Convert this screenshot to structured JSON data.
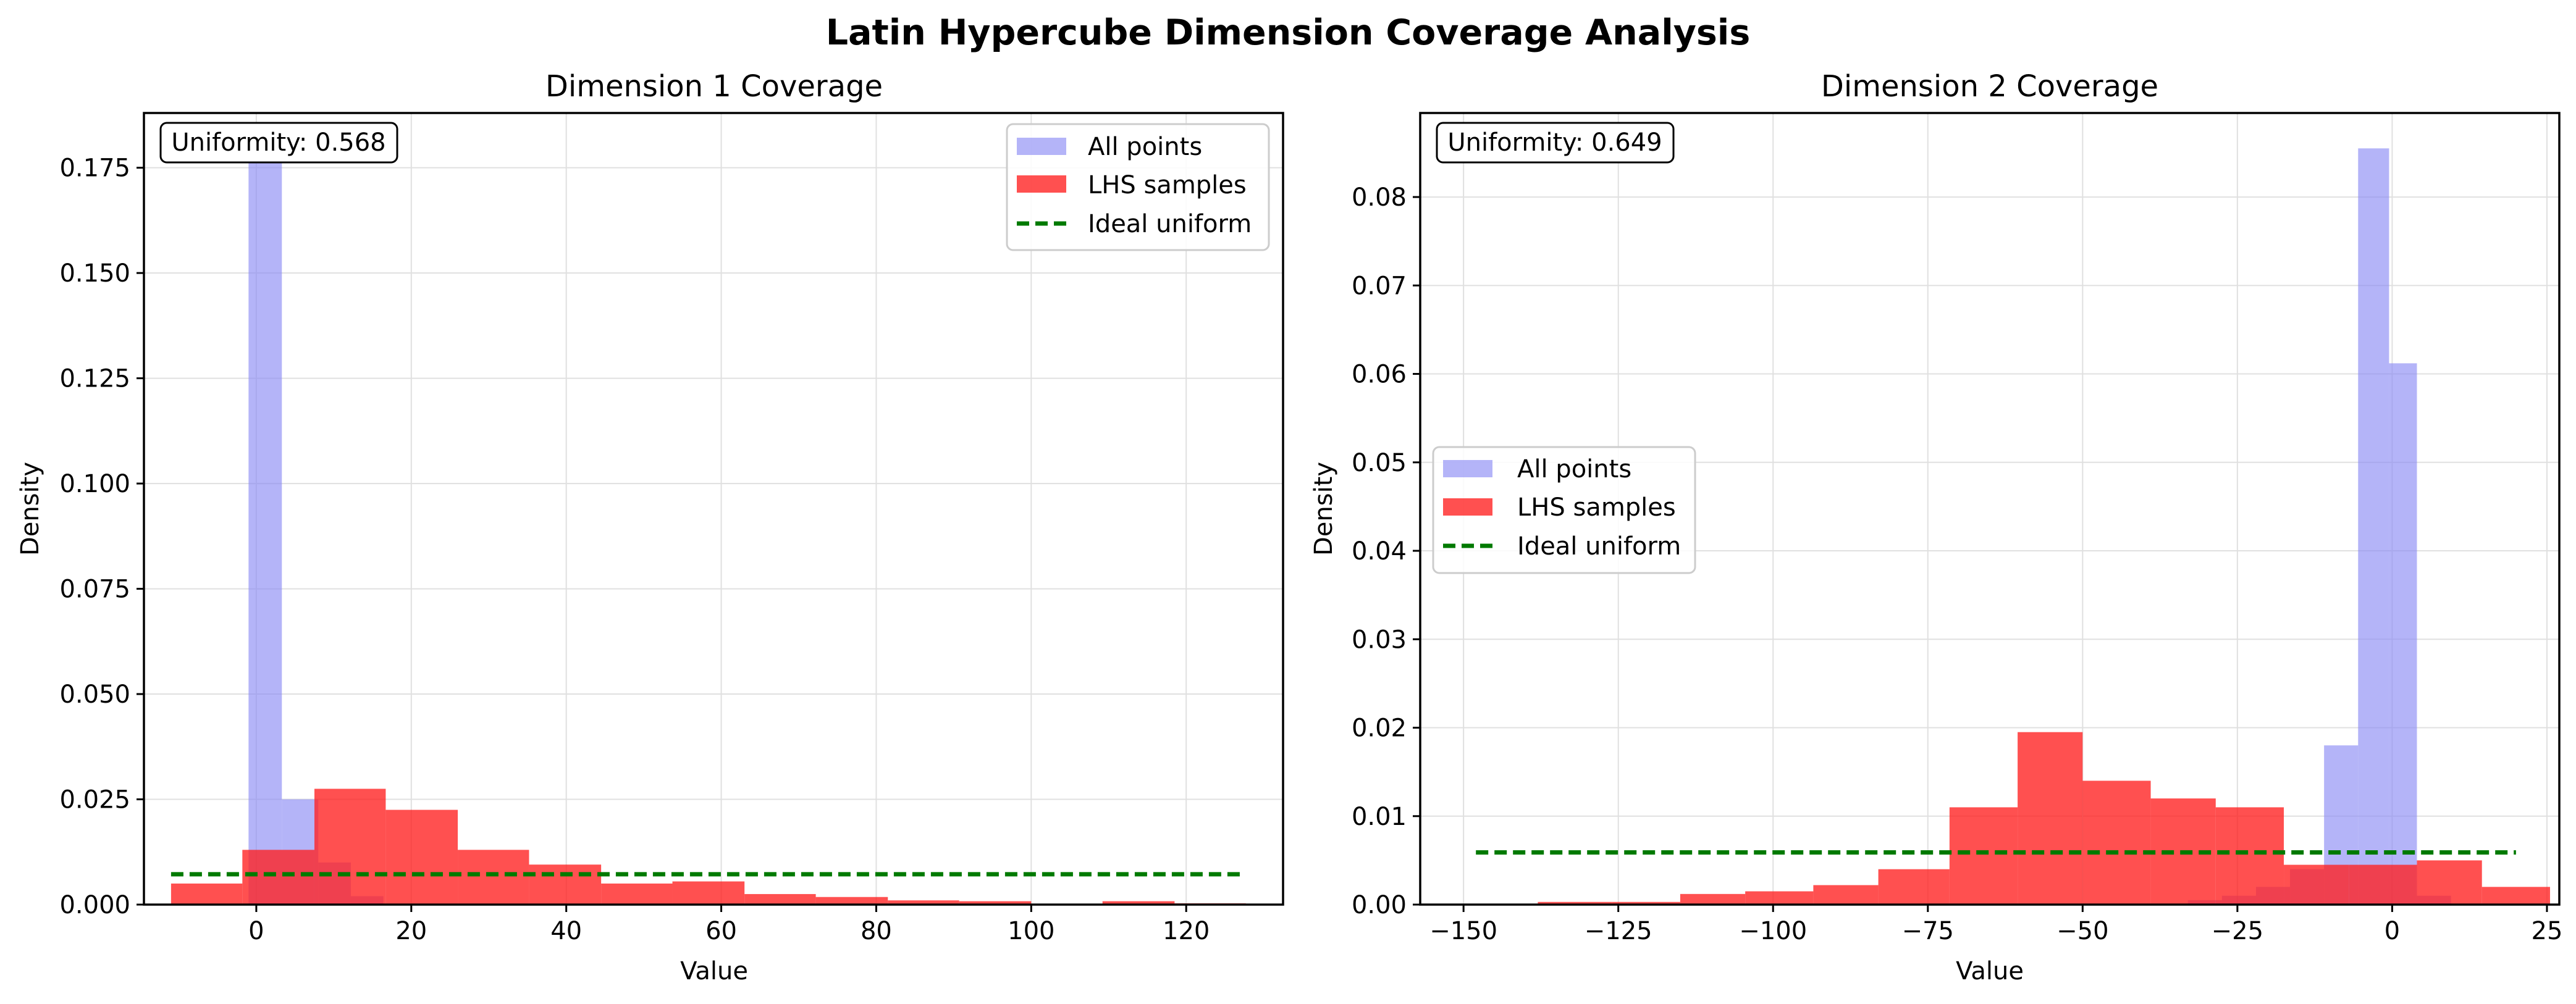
{
  "figure": {
    "title": "Latin Hypercube Dimension Coverage Analysis"
  },
  "colors": {
    "all_points": "#8c8cf5",
    "lhs_samples": "#ff1f1f",
    "ideal_uniform": "#007a00",
    "grid": "#e0e0e0"
  },
  "chart_data": [
    {
      "type": "bar",
      "title": "Dimension 1 Coverage",
      "xlabel": "Value",
      "ylabel": "Density",
      "xlim": [
        -14.5,
        132.5
      ],
      "ylim": [
        0,
        0.188
      ],
      "xticks": [
        0,
        20,
        40,
        60,
        80,
        100,
        120
      ],
      "yticks": [
        0.0,
        0.025,
        0.05,
        0.075,
        0.1,
        0.125,
        0.15,
        0.175
      ],
      "ytick_labels": [
        "0.000",
        "0.025",
        "0.050",
        "0.075",
        "0.100",
        "0.125",
        "0.150",
        "0.175"
      ],
      "grid": true,
      "legend_position": "upper-right",
      "annotation": "Uniformity: 0.568",
      "series": [
        {
          "name": "All points",
          "bins": [
            [
              -1,
              3.3
            ],
            [
              3.3,
              8
            ],
            [
              8,
              12.2
            ],
            [
              12.2,
              16.4
            ]
          ],
          "values": [
            0.178,
            0.025,
            0.01,
            0.002
          ]
        },
        {
          "name": "LHS samples",
          "bins": [
            [
              -11,
              -1.8
            ],
            [
              -1.8,
              7.5
            ],
            [
              7.5,
              16.7
            ],
            [
              16.7,
              26
            ],
            [
              26,
              35.2
            ],
            [
              35.2,
              44.5
            ],
            [
              44.5,
              53.7
            ],
            [
              53.7,
              63
            ],
            [
              63,
              72.2
            ],
            [
              72.2,
              81.5
            ],
            [
              81.5,
              90.7
            ],
            [
              90.7,
              100
            ],
            [
              100,
              109.2
            ],
            [
              109.2,
              118.5
            ],
            [
              118.5,
              127.7
            ]
          ],
          "values": [
            0.005,
            0.013,
            0.0275,
            0.0225,
            0.013,
            0.0095,
            0.005,
            0.0055,
            0.0025,
            0.0018,
            0.001,
            0.0008,
            0.0002,
            0.0008,
            0.0003
          ]
        },
        {
          "name": "Ideal uniform",
          "x": [
            -11,
            127.7
          ],
          "y": [
            0.0072,
            0.0072
          ]
        }
      ]
    },
    {
      "type": "bar",
      "title": "Dimension 2 Coverage",
      "xlabel": "Value",
      "ylabel": "Density",
      "xlim": [
        -157,
        27
      ],
      "ylim": [
        0,
        0.0895
      ],
      "xticks": [
        -150,
        -125,
        -100,
        -75,
        -50,
        -25,
        0,
        25
      ],
      "yticks": [
        0.0,
        0.01,
        0.02,
        0.03,
        0.04,
        0.05,
        0.06,
        0.07,
        0.08
      ],
      "ytick_labels": [
        "0.00",
        "0.01",
        "0.02",
        "0.03",
        "0.04",
        "0.05",
        "0.06",
        "0.07",
        "0.08"
      ],
      "grid": true,
      "legend_position": "center-left",
      "annotation": "Uniformity: 0.649",
      "series": [
        {
          "name": "All points",
          "bins": [
            [
              -33,
              -27.5
            ],
            [
              -27.5,
              -22
            ],
            [
              -22,
              -16.5
            ],
            [
              -16.5,
              -11
            ],
            [
              -11,
              -5.5
            ],
            [
              -5.5,
              -0.5
            ],
            [
              -0.5,
              4
            ],
            [
              4,
              9.5
            ]
          ],
          "values": [
            0.0005,
            0.001,
            0.002,
            0.004,
            0.018,
            0.0855,
            0.0612,
            0.001
          ]
        },
        {
          "name": "LHS samples",
          "bins": [
            [
              -148,
              -138
            ],
            [
              -138,
              -126
            ],
            [
              -126,
              -115
            ],
            [
              -115,
              -104.5
            ],
            [
              -104.5,
              -93.5
            ],
            [
              -93.5,
              -83
            ],
            [
              -83,
              -71.5
            ],
            [
              -71.5,
              -60.5
            ],
            [
              -60.5,
              -50
            ],
            [
              -50,
              -39
            ],
            [
              -39,
              -28.5
            ],
            [
              -28.5,
              -17.5
            ],
            [
              -17.5,
              -7
            ],
            [
              -7,
              4
            ],
            [
              4,
              14.5
            ],
            [
              14.5,
              25.5
            ]
          ],
          "values": [
            0.0001,
            0.0003,
            0.0003,
            0.0012,
            0.0015,
            0.0022,
            0.004,
            0.011,
            0.0195,
            0.014,
            0.012,
            0.011,
            0.0045,
            0.0045,
            0.005,
            0.002
          ]
        },
        {
          "name": "Ideal uniform",
          "x": [
            -148,
            20
          ],
          "y": [
            0.0059,
            0.0059
          ]
        }
      ]
    }
  ]
}
